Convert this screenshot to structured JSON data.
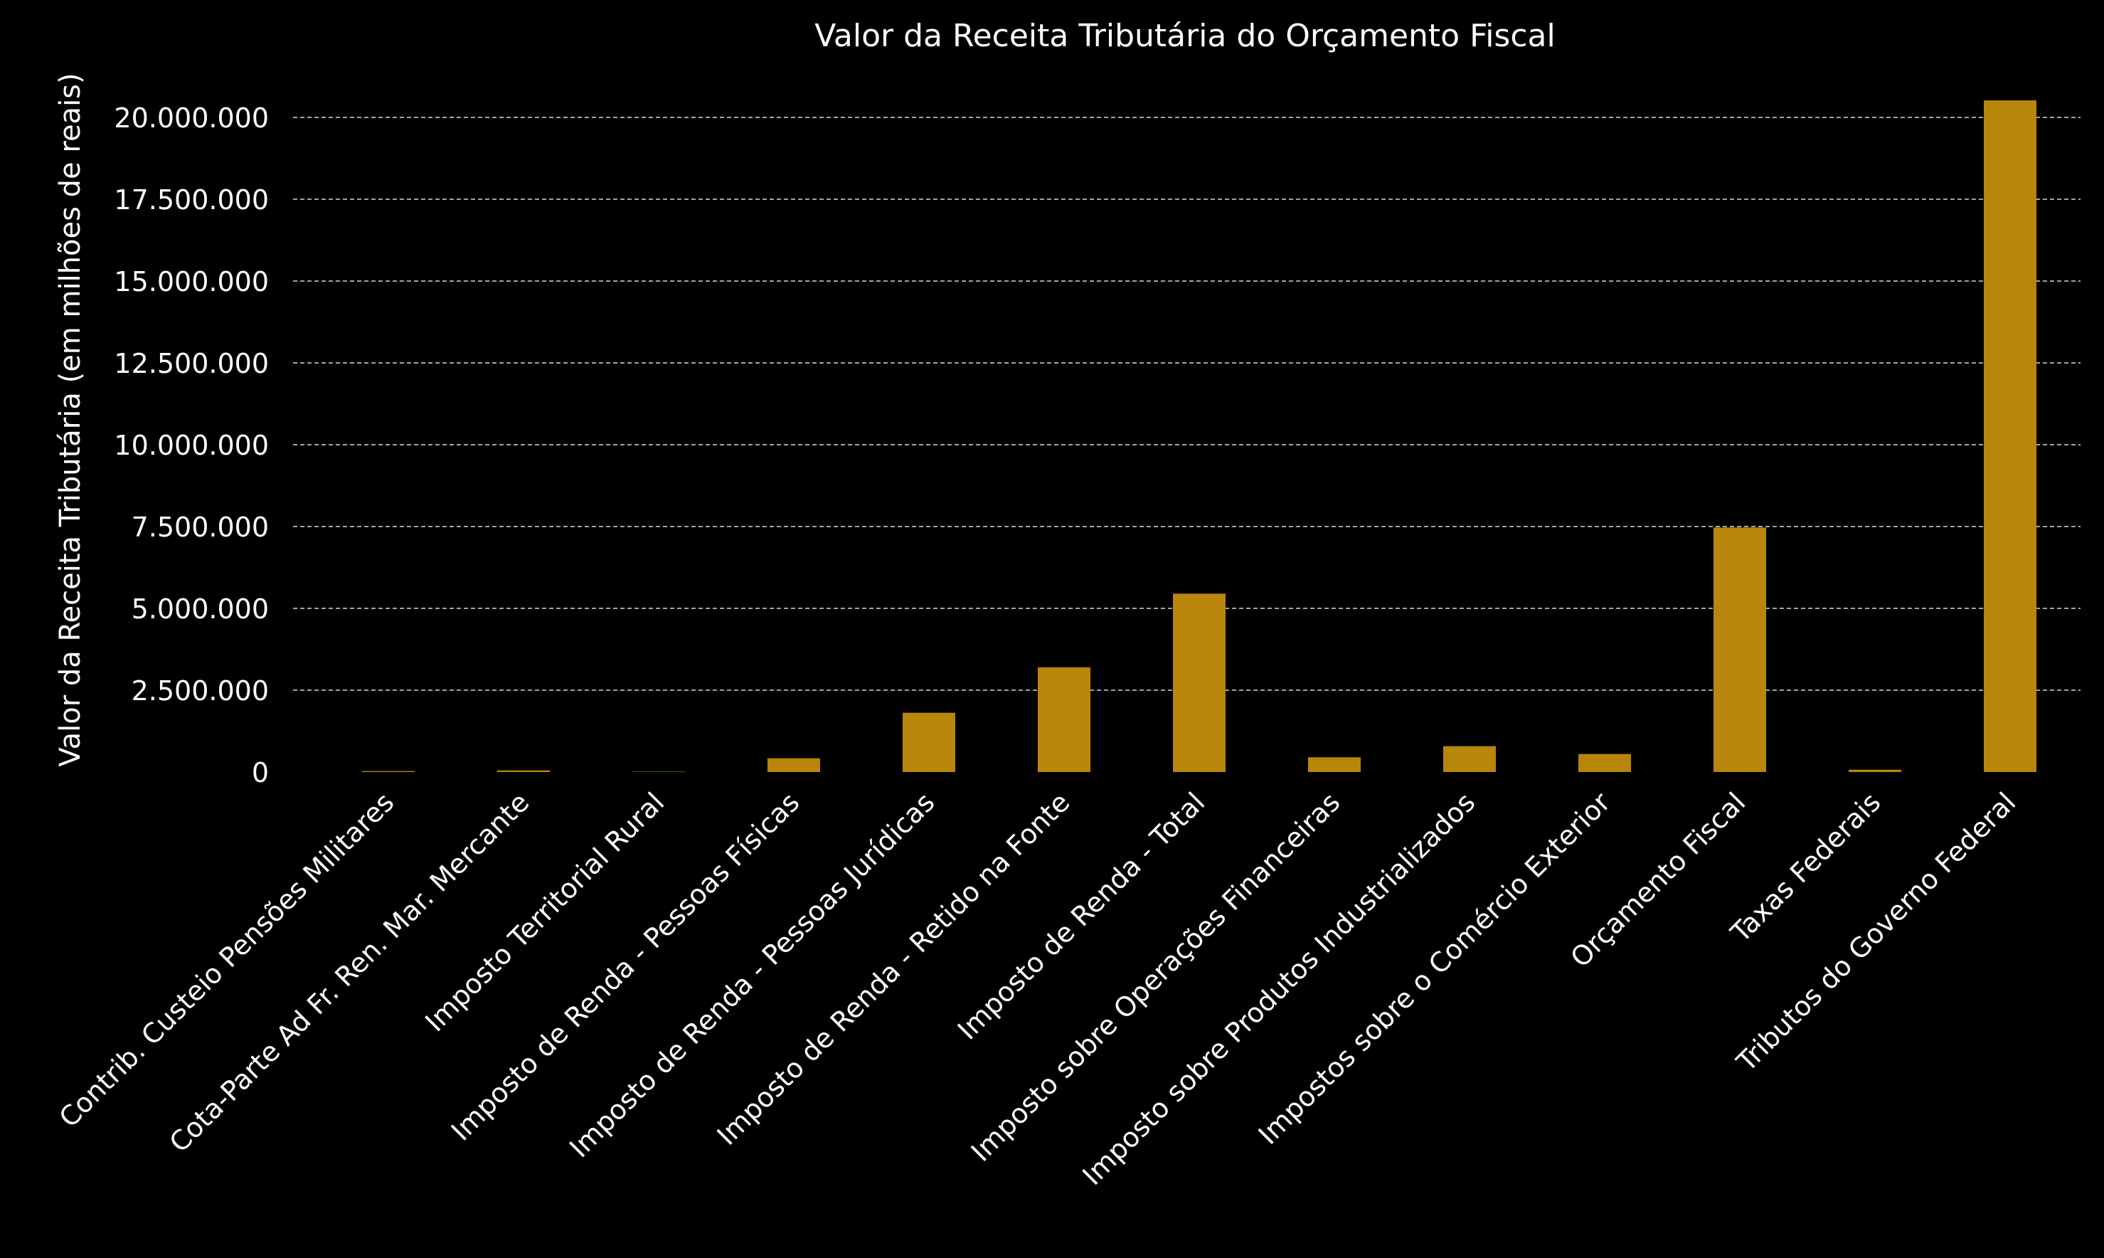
{
  "chart_data": {
    "type": "bar",
    "title": "Valor da Receita Tributária do Orçamento Fiscal",
    "xlabel": "",
    "ylabel": "Valor da Receita Tributária (em milhões de reais)",
    "ylim": [
      0,
      21000000
    ],
    "yticks": [
      0,
      2500000,
      5000000,
      7500000,
      10000000,
      12500000,
      15000000,
      17500000,
      20000000
    ],
    "ytick_labels": [
      "0",
      "2.500.000",
      "5.000.000",
      "7.500.000",
      "10.000.000",
      "12.500.000",
      "15.000.000",
      "17.500.000",
      "20.000.000"
    ],
    "grid": "horizontal dashed",
    "categories": [
      "Contrib. Custeio Pensões Militares",
      "Cota-Parte Ad Fr. Ren. Mar. Mercante",
      "Imposto Territorial Rural",
      "Imposto de Renda - Pessoas Físicas",
      "Imposto de Renda - Pessoas Jurídicas",
      "Imposto de Renda - Retido na Fonte",
      "Imposto de Renda - Total",
      "Imposto sobre Operações Financeiras",
      "Imposto sobre Produtos Industrializados",
      "Impostos sobre o Comércio Exterior",
      "Orçamento Fiscal",
      "Taxas Federais",
      "Tributos do Governo Federal"
    ],
    "values": [
      30000,
      50000,
      10000,
      420000,
      1810000,
      3200000,
      5450000,
      450000,
      790000,
      550000,
      7470000,
      70000,
      20520000
    ],
    "colors": {
      "bar": "#B8860B",
      "background": "#000000",
      "text": "#ffffff",
      "grid": "#ffffff"
    }
  }
}
